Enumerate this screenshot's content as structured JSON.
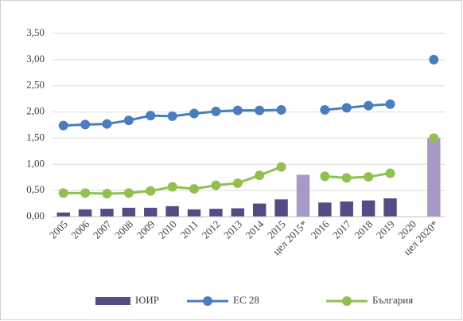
{
  "chart_data": {
    "type": "bar",
    "categories": [
      "2005",
      "2006",
      "2007",
      "2008",
      "2009",
      "2010",
      "2011",
      "2012",
      "2013",
      "2014",
      "2015",
      "цел 2015*",
      "2016",
      "2017",
      "2018",
      "2019",
      "2020",
      "цел 2020*"
    ],
    "series": [
      {
        "name": "ЮИР",
        "type": "bar",
        "color": "#574a85",
        "point_colors": [
          "#574a85",
          "#574a85",
          "#574a85",
          "#574a85",
          "#574a85",
          "#574a85",
          "#574a85",
          "#574a85",
          "#574a85",
          "#574a85",
          "#574a85",
          "#a898c8",
          "#574a85",
          "#574a85",
          "#574a85",
          "#574a85",
          "#574a85",
          "#a898c8"
        ],
        "values": [
          0.08,
          0.14,
          0.15,
          0.17,
          0.17,
          0.2,
          0.14,
          0.15,
          0.16,
          0.25,
          0.33,
          0.8,
          0.27,
          0.29,
          0.31,
          0.35,
          null,
          1.5
        ]
      },
      {
        "name": "ЕС 28",
        "type": "line",
        "color": "#4a7cc0",
        "values": [
          1.74,
          1.76,
          1.77,
          1.84,
          1.93,
          1.92,
          1.97,
          2.01,
          2.03,
          2.03,
          2.04,
          null,
          2.04,
          2.08,
          2.12,
          2.15,
          null,
          3.0
        ]
      },
      {
        "name": "България",
        "type": "line",
        "color": "#92c050",
        "values": [
          0.45,
          0.45,
          0.44,
          0.45,
          0.49,
          0.57,
          0.53,
          0.6,
          0.64,
          0.79,
          0.95,
          null,
          0.77,
          0.74,
          0.76,
          0.83,
          null,
          1.5
        ]
      }
    ],
    "ylim": [
      0,
      3.5
    ],
    "yticks": [
      {
        "value": 0,
        "label": "0,00"
      },
      {
        "value": 0.5,
        "label": "0,50"
      },
      {
        "value": 1,
        "label": "1,00"
      },
      {
        "value": 1.5,
        "label": "1,50"
      },
      {
        "value": 2,
        "label": "2,00"
      },
      {
        "value": 2.5,
        "label": "2,50"
      },
      {
        "value": 3,
        "label": "3,00"
      },
      {
        "value": 3.5,
        "label": "3,50"
      }
    ],
    "grid": true,
    "legend": "bottom"
  }
}
